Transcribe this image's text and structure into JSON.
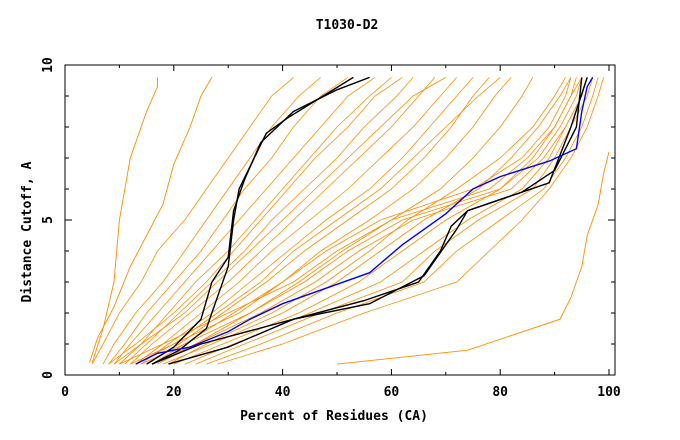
{
  "chart_data": {
    "type": "line",
    "title": "T1030-D2",
    "xlabel": "Percent of Residues (CA)",
    "ylabel": "Distance Cutoff, A",
    "xlim": [
      0,
      100
    ],
    "ylim": [
      0,
      10
    ],
    "x_ticks": [
      "0",
      "20",
      "40",
      "60",
      "80",
      "100"
    ],
    "x_tick_values": [
      0,
      20,
      40,
      60,
      80,
      100
    ],
    "y_ticks": [
      "0",
      "5",
      "10"
    ],
    "y_tick_values": [
      0,
      5,
      10
    ],
    "grid": false,
    "colors": {
      "models": "#ff8c00",
      "highlight_black": "#000000",
      "highlight_blue": "#0000ff"
    },
    "y_levels": [
      0.35,
      1,
      2,
      3,
      4,
      5,
      6,
      7,
      8,
      9,
      9.6
    ],
    "orange_series_x": [
      [
        5,
        7,
        10,
        14,
        17,
        22,
        26,
        30,
        34,
        38,
        42
      ],
      [
        7,
        9,
        13,
        18,
        22,
        26,
        30,
        34,
        38,
        43,
        47
      ],
      [
        8,
        11,
        15,
        20,
        25,
        29,
        33,
        38,
        42,
        47,
        52
      ],
      [
        9,
        12,
        17,
        22,
        27,
        32,
        37,
        42,
        47,
        52,
        57
      ],
      [
        10,
        14,
        19,
        24,
        30,
        35,
        40,
        45,
        50,
        56,
        60
      ],
      [
        11,
        15,
        21,
        27,
        33,
        38,
        44,
        50,
        55,
        61,
        64
      ],
      [
        12,
        16,
        23,
        30,
        36,
        42,
        48,
        54,
        60,
        65,
        68
      ],
      [
        13,
        18,
        25,
        32,
        38,
        45,
        52,
        58,
        64,
        69,
        72
      ],
      [
        14,
        19,
        27,
        34,
        41,
        48,
        56,
        62,
        67,
        72,
        75
      ],
      [
        15,
        21,
        29,
        37,
        44,
        52,
        60,
        66,
        71,
        75,
        78
      ],
      [
        16,
        22,
        31,
        40,
        47,
        56,
        64,
        70,
        75,
        79,
        82
      ],
      [
        17,
        24,
        34,
        43,
        51,
        60,
        69,
        75,
        80,
        84,
        86
      ],
      [
        18,
        27,
        40,
        50,
        58,
        66,
        76,
        82,
        87,
        91,
        93
      ],
      [
        20,
        29,
        43,
        54,
        62,
        70,
        80,
        86,
        90,
        93,
        95
      ],
      [
        22,
        31,
        45,
        58,
        66,
        74,
        84,
        89,
        92,
        95,
        96
      ],
      [
        24,
        33,
        47,
        62,
        68,
        76,
        86,
        90,
        93,
        96,
        97
      ],
      [
        26,
        36,
        50,
        66,
        72,
        80,
        88,
        92,
        95,
        97,
        98
      ],
      [
        28,
        40,
        55,
        72,
        78,
        84,
        89,
        93,
        96,
        98,
        99
      ],
      [
        16,
        24,
        36,
        46,
        54,
        64,
        82,
        88,
        92,
        95,
        96
      ],
      [
        14,
        22,
        34,
        44,
        52,
        62,
        80,
        87,
        91,
        94,
        95
      ],
      [
        10,
        18,
        30,
        42,
        50,
        60,
        78,
        85,
        90,
        93,
        94
      ],
      [
        12,
        20,
        32,
        40,
        48,
        58,
        75,
        84,
        89,
        92,
        93
      ],
      [
        9,
        14,
        22,
        28,
        34,
        40,
        46,
        52,
        58,
        64,
        70
      ],
      [
        13,
        20,
        28,
        36,
        42,
        50,
        58,
        64,
        70,
        76,
        80
      ],
      [
        19,
        26,
        38,
        48,
        56,
        63,
        72,
        80,
        86,
        90,
        92
      ],
      [
        8,
        13,
        20,
        26,
        31,
        36,
        41,
        46,
        52,
        57,
        62
      ]
    ],
    "orange_outliers": [
      [
        [
          5,
          0.4
        ],
        [
          7,
          1.5
        ],
        [
          9,
          3
        ],
        [
          10,
          5
        ],
        [
          12,
          7
        ],
        [
          15,
          8.5
        ],
        [
          17,
          9.3
        ],
        [
          17,
          9.6
        ]
      ],
      [
        [
          4.5,
          0.4
        ],
        [
          6,
          1.2
        ],
        [
          9,
          2.2
        ],
        [
          12,
          3.5
        ],
        [
          15,
          4.5
        ],
        [
          18,
          5.5
        ],
        [
          20,
          6.8
        ],
        [
          23,
          8
        ],
        [
          25,
          9
        ],
        [
          27,
          9.6
        ]
      ],
      [
        [
          50,
          0.35
        ],
        [
          74,
          0.8
        ],
        [
          91,
          1.8
        ],
        [
          93,
          2.5
        ],
        [
          95,
          3.5
        ],
        [
          96,
          4.5
        ],
        [
          98,
          5.5
        ],
        [
          99,
          6.5
        ],
        [
          100,
          7.2
        ]
      ]
    ],
    "black_series": [
      [
        [
          15,
          0.35
        ],
        [
          20,
          0.9
        ],
        [
          25,
          1.8
        ],
        [
          27,
          3
        ],
        [
          30,
          3.8
        ],
        [
          31,
          5.3
        ],
        [
          33,
          6.3
        ],
        [
          36,
          7.5
        ],
        [
          42,
          8.5
        ],
        [
          50,
          9.2
        ],
        [
          56,
          9.6
        ]
      ],
      [
        [
          16,
          0.35
        ],
        [
          21,
          0.8
        ],
        [
          26,
          1.5
        ],
        [
          30,
          3.5
        ],
        [
          31,
          5
        ],
        [
          32,
          6
        ],
        [
          37,
          7.8
        ],
        [
          41,
          8.3
        ],
        [
          53,
          9.6
        ]
      ],
      [
        [
          19,
          0.35
        ],
        [
          30,
          0.9
        ],
        [
          42,
          1.8
        ],
        [
          55,
          2.4
        ],
        [
          65,
          3
        ],
        [
          69,
          4
        ],
        [
          71,
          4.8
        ],
        [
          74,
          5.3
        ],
        [
          84,
          5.9
        ],
        [
          89,
          6.2
        ],
        [
          93,
          8
        ],
        [
          96,
          9.6
        ]
      ],
      [
        [
          16,
          0.35
        ],
        [
          25,
          1
        ],
        [
          42,
          1.8
        ],
        [
          56,
          2.3
        ],
        [
          66,
          3.2
        ],
        [
          70,
          4.2
        ],
        [
          72,
          4.7
        ],
        [
          74,
          5.3
        ],
        [
          84,
          5.9
        ],
        [
          90,
          6.6
        ],
        [
          94,
          8
        ],
        [
          95,
          9.6
        ]
      ]
    ],
    "blue_series": [
      [
        13,
        0.35
      ],
      [
        17,
        0.7
      ],
      [
        23,
        0.9
      ],
      [
        30,
        1.4
      ],
      [
        34,
        1.8
      ],
      [
        40,
        2.3
      ],
      [
        48,
        2.8
      ],
      [
        56,
        3.3
      ],
      [
        62,
        4.2
      ],
      [
        70,
        5.2
      ],
      [
        75,
        6
      ],
      [
        80,
        6.4
      ],
      [
        89,
        6.9
      ],
      [
        94,
        7.3
      ],
      [
        95,
        8.5
      ],
      [
        96,
        9.3
      ],
      [
        97,
        9.6
      ]
    ]
  }
}
